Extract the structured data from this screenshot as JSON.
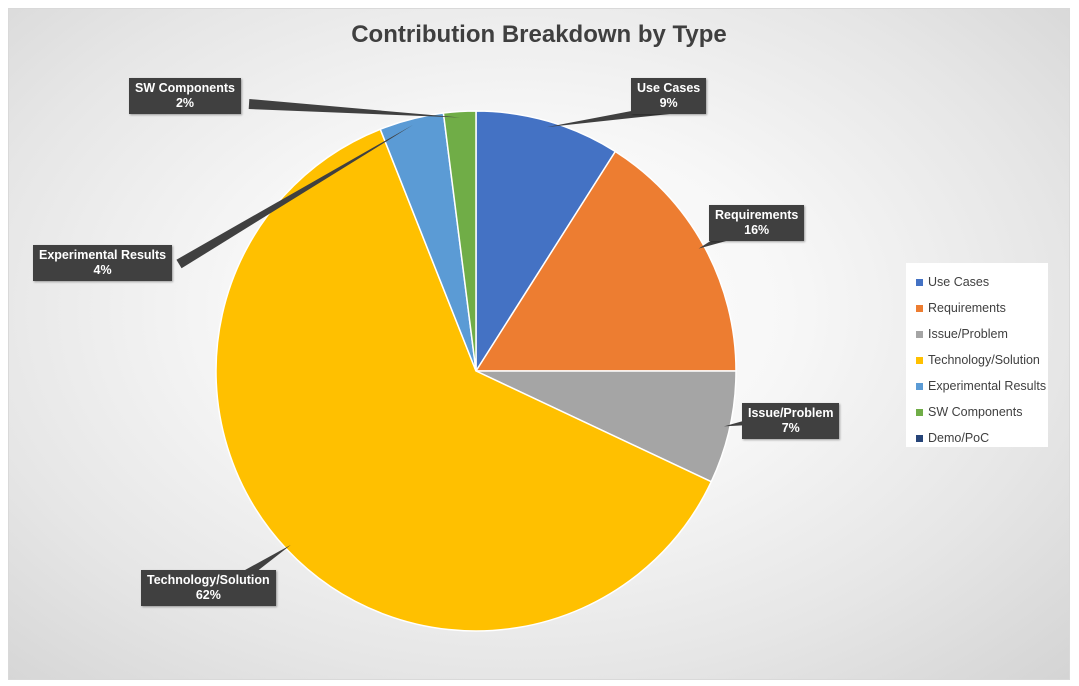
{
  "chart_data": {
    "type": "pie",
    "title": "Contribution Breakdown by Type",
    "legend_position": "right",
    "slices": [
      {
        "name": "Use Cases",
        "value": 9,
        "label": "9%",
        "color": "#4472C4"
      },
      {
        "name": "Requirements",
        "value": 16,
        "label": "16%",
        "color": "#ED7D31"
      },
      {
        "name": "Issue/Problem",
        "value": 7,
        "label": "7%",
        "color": "#A5A5A5"
      },
      {
        "name": "Technology/Solution",
        "value": 62,
        "label": "62%",
        "color": "#FFC000"
      },
      {
        "name": "Experimental Results",
        "value": 4,
        "label": "4%",
        "color": "#5B9BD5"
      },
      {
        "name": "SW Components",
        "value": 2,
        "label": "2%",
        "color": "#70AD47"
      },
      {
        "name": "Demo/PoC",
        "value": 0,
        "label": "",
        "color": "#264478"
      }
    ]
  }
}
